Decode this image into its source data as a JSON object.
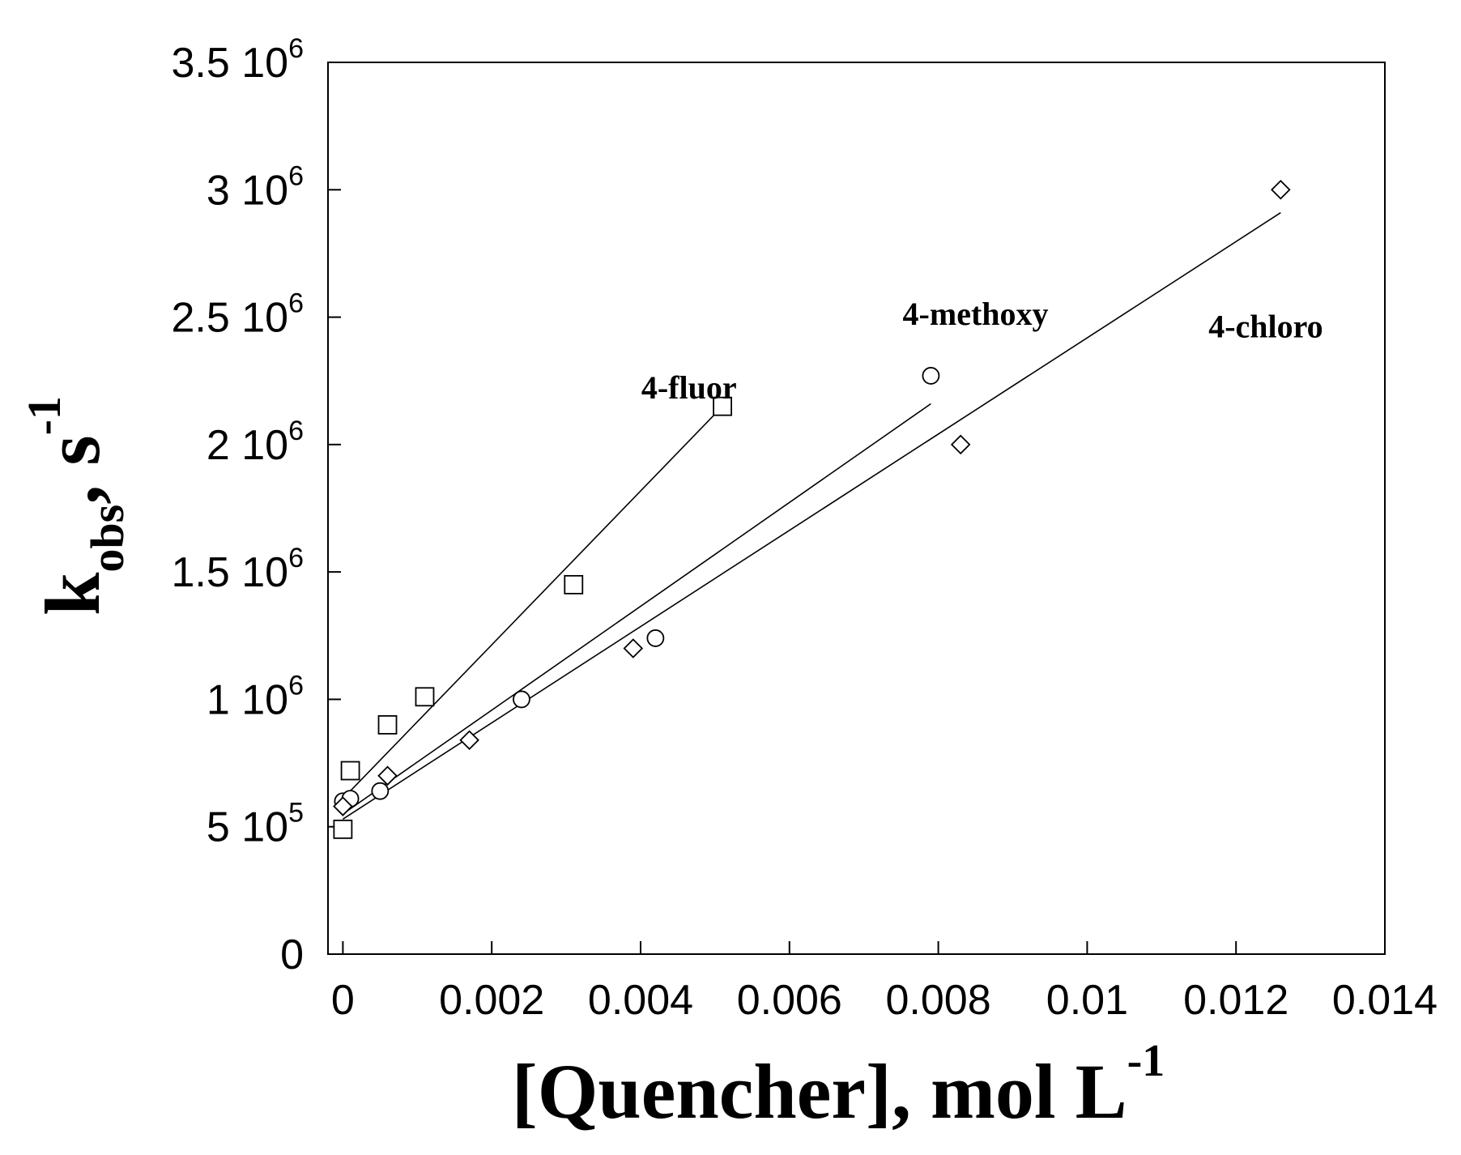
{
  "chart_data": {
    "type": "scatter",
    "title": "",
    "xlabel": {
      "main": "[Quencher], mol L",
      "sup": "-1"
    },
    "ylabel": {
      "main": "k",
      "sub": "obs",
      "mid": ", s",
      "sup": "-1"
    },
    "xlim": [
      -0.0002,
      0.014
    ],
    "ylim": [
      0,
      3500000
    ],
    "grid": false,
    "x_ticks": [
      {
        "value": 0,
        "label": "0"
      },
      {
        "value": 0.002,
        "label": "0.002"
      },
      {
        "value": 0.004,
        "label": "0.004"
      },
      {
        "value": 0.006,
        "label": "0.006"
      },
      {
        "value": 0.008,
        "label": "0.008"
      },
      {
        "value": 0.01,
        "label": "0.01"
      },
      {
        "value": 0.012,
        "label": "0.012"
      },
      {
        "value": 0.014,
        "label": "0.014"
      }
    ],
    "y_ticks": [
      {
        "value": 0,
        "base": "0",
        "exp": ""
      },
      {
        "value": 500000,
        "base": "5 10",
        "exp": "5"
      },
      {
        "value": 1000000,
        "base": "1 10",
        "exp": "6"
      },
      {
        "value": 1500000,
        "base": "1.5 10",
        "exp": "6"
      },
      {
        "value": 2000000,
        "base": "2 10",
        "exp": "6"
      },
      {
        "value": 2500000,
        "base": "2.5 10",
        "exp": "6"
      },
      {
        "value": 3000000,
        "base": "3 10",
        "exp": "6"
      },
      {
        "value": 3500000,
        "base": "3.5 10",
        "exp": "6"
      }
    ],
    "series": [
      {
        "name": "4-fluor",
        "marker": "square",
        "points": [
          {
            "x": 0.0,
            "y": 490000
          },
          {
            "x": 0.0001,
            "y": 720000
          },
          {
            "x": 0.0006,
            "y": 900000
          },
          {
            "x": 0.0011,
            "y": 1010000
          },
          {
            "x": 0.0031,
            "y": 1450000
          },
          {
            "x": 0.0051,
            "y": 2150000
          }
        ],
        "fit": [
          {
            "x": 0.0,
            "y": 610000
          },
          {
            "x": 0.0051,
            "y": 2150000
          }
        ],
        "label_pos": {
          "x": 0.00465,
          "y": 2180000
        }
      },
      {
        "name": "4-methoxy",
        "marker": "circle",
        "points": [
          {
            "x": 0.0,
            "y": 600000
          },
          {
            "x": 0.0001,
            "y": 610000
          },
          {
            "x": 0.0005,
            "y": 640000
          },
          {
            "x": 0.0024,
            "y": 1000000
          },
          {
            "x": 0.0042,
            "y": 1240000
          },
          {
            "x": 0.0079,
            "y": 2270000
          }
        ],
        "fit": [
          {
            "x": 0.0,
            "y": 550000
          },
          {
            "x": 0.0079,
            "y": 2160000
          }
        ],
        "label_pos": {
          "x": 0.0085,
          "y": 2470000
        }
      },
      {
        "name": "4-chloro",
        "marker": "diamond",
        "points": [
          {
            "x": 0.0,
            "y": 580000
          },
          {
            "x": 0.0006,
            "y": 700000
          },
          {
            "x": 0.0017,
            "y": 840000
          },
          {
            "x": 0.0039,
            "y": 1200000
          },
          {
            "x": 0.0083,
            "y": 2000000
          },
          {
            "x": 0.0126,
            "y": 3000000
          }
        ],
        "fit": [
          {
            "x": 0.0,
            "y": 530000
          },
          {
            "x": 0.0126,
            "y": 2910000
          }
        ],
        "label_pos": {
          "x": 0.0124,
          "y": 2420000
        }
      }
    ]
  }
}
